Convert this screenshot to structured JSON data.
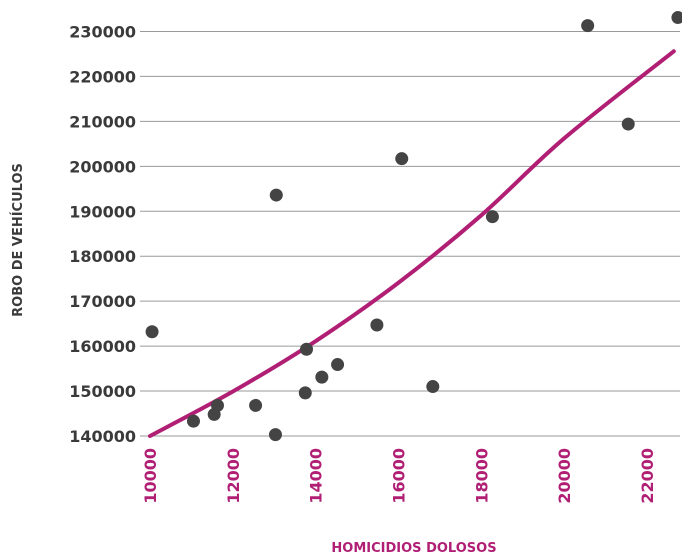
{
  "chart_data": {
    "type": "scatter",
    "xlabel": "HOMICIDIOS DOLOSOS",
    "ylabel": "ROBO DE VEHÍCULOS",
    "xlim": [
      10000,
      22800
    ],
    "ylim": [
      140000,
      233000
    ],
    "xticks": [
      10000,
      12000,
      14000,
      16000,
      18000,
      20000,
      22000
    ],
    "yticks": [
      140000,
      150000,
      160000,
      170000,
      180000,
      190000,
      200000,
      210000,
      220000,
      230000
    ],
    "grid": "horizontal",
    "colors": {
      "points": "#444444",
      "trendline": "#b01f74",
      "xticks": "#b01f74",
      "xlabel": "#b01f74",
      "yticks": "#3a3a3a",
      "ylabel": "#3a3a3a"
    },
    "series": [
      {
        "values": [
          [
            10050,
            163200
          ],
          [
            11050,
            143300
          ],
          [
            11550,
            144800
          ],
          [
            11630,
            146800
          ],
          [
            12550,
            146800
          ],
          [
            13030,
            140300
          ],
          [
            13050,
            193600
          ],
          [
            13750,
            149600
          ],
          [
            13780,
            159300
          ],
          [
            14150,
            153100
          ],
          [
            14530,
            155900
          ],
          [
            15480,
            164700
          ],
          [
            16080,
            201700
          ],
          [
            16830,
            151000
          ],
          [
            18270,
            188800
          ],
          [
            20570,
            231300
          ],
          [
            21550,
            209400
          ],
          [
            22750,
            233100
          ]
        ]
      }
    ],
    "trendline": {
      "type": "polynomial",
      "points": [
        [
          10000,
          140000
        ],
        [
          12000,
          149900
        ],
        [
          14000,
          161100
        ],
        [
          16000,
          174100
        ],
        [
          18000,
          189100
        ],
        [
          20000,
          206200
        ],
        [
          22650,
          225600
        ]
      ]
    }
  }
}
